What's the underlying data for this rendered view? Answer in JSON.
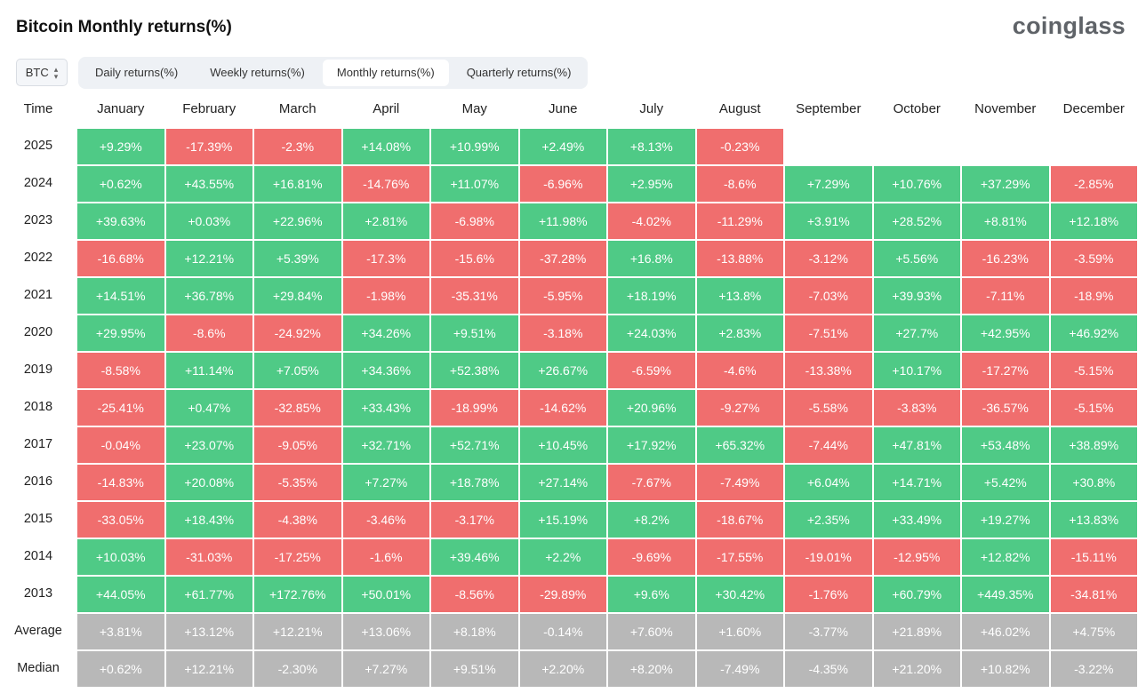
{
  "title": "Bitcoin Monthly returns(%)",
  "brand": "coinglass",
  "asset_select": {
    "value": "BTC"
  },
  "tabs": [
    {
      "label": "Daily returns(%)",
      "active": false
    },
    {
      "label": "Weekly returns(%)",
      "active": false
    },
    {
      "label": "Monthly returns(%)",
      "active": true
    },
    {
      "label": "Quarterly returns(%)",
      "active": false
    }
  ],
  "colors": {
    "positive": "#4fca86",
    "negative": "#f06e6e",
    "stat": "#b8b8b8"
  },
  "chart_data": {
    "type": "heatmap",
    "row_header": "Time",
    "columns": [
      "January",
      "February",
      "March",
      "April",
      "May",
      "June",
      "July",
      "August",
      "September",
      "October",
      "November",
      "December"
    ],
    "rows": [
      {
        "label": "2025",
        "values": [
          "+9.29%",
          "-17.39%",
          "-2.3%",
          "+14.08%",
          "+10.99%",
          "+2.49%",
          "+8.13%",
          "-0.23%",
          "",
          "",
          "",
          ""
        ]
      },
      {
        "label": "2024",
        "values": [
          "+0.62%",
          "+43.55%",
          "+16.81%",
          "-14.76%",
          "+11.07%",
          "-6.96%",
          "+2.95%",
          "-8.6%",
          "+7.29%",
          "+10.76%",
          "+37.29%",
          "-2.85%"
        ]
      },
      {
        "label": "2023",
        "values": [
          "+39.63%",
          "+0.03%",
          "+22.96%",
          "+2.81%",
          "-6.98%",
          "+11.98%",
          "-4.02%",
          "-11.29%",
          "+3.91%",
          "+28.52%",
          "+8.81%",
          "+12.18%"
        ]
      },
      {
        "label": "2022",
        "values": [
          "-16.68%",
          "+12.21%",
          "+5.39%",
          "-17.3%",
          "-15.6%",
          "-37.28%",
          "+16.8%",
          "-13.88%",
          "-3.12%",
          "+5.56%",
          "-16.23%",
          "-3.59%"
        ]
      },
      {
        "label": "2021",
        "values": [
          "+14.51%",
          "+36.78%",
          "+29.84%",
          "-1.98%",
          "-35.31%",
          "-5.95%",
          "+18.19%",
          "+13.8%",
          "-7.03%",
          "+39.93%",
          "-7.11%",
          "-18.9%"
        ]
      },
      {
        "label": "2020",
        "values": [
          "+29.95%",
          "-8.6%",
          "-24.92%",
          "+34.26%",
          "+9.51%",
          "-3.18%",
          "+24.03%",
          "+2.83%",
          "-7.51%",
          "+27.7%",
          "+42.95%",
          "+46.92%"
        ]
      },
      {
        "label": "2019",
        "values": [
          "-8.58%",
          "+11.14%",
          "+7.05%",
          "+34.36%",
          "+52.38%",
          "+26.67%",
          "-6.59%",
          "-4.6%",
          "-13.38%",
          "+10.17%",
          "-17.27%",
          "-5.15%"
        ]
      },
      {
        "label": "2018",
        "values": [
          "-25.41%",
          "+0.47%",
          "-32.85%",
          "+33.43%",
          "-18.99%",
          "-14.62%",
          "+20.96%",
          "-9.27%",
          "-5.58%",
          "-3.83%",
          "-36.57%",
          "-5.15%"
        ]
      },
      {
        "label": "2017",
        "values": [
          "-0.04%",
          "+23.07%",
          "-9.05%",
          "+32.71%",
          "+52.71%",
          "+10.45%",
          "+17.92%",
          "+65.32%",
          "-7.44%",
          "+47.81%",
          "+53.48%",
          "+38.89%"
        ]
      },
      {
        "label": "2016",
        "values": [
          "-14.83%",
          "+20.08%",
          "-5.35%",
          "+7.27%",
          "+18.78%",
          "+27.14%",
          "-7.67%",
          "-7.49%",
          "+6.04%",
          "+14.71%",
          "+5.42%",
          "+30.8%"
        ]
      },
      {
        "label": "2015",
        "values": [
          "-33.05%",
          "+18.43%",
          "-4.38%",
          "-3.46%",
          "-3.17%",
          "+15.19%",
          "+8.2%",
          "-18.67%",
          "+2.35%",
          "+33.49%",
          "+19.27%",
          "+13.83%"
        ]
      },
      {
        "label": "2014",
        "values": [
          "+10.03%",
          "-31.03%",
          "-17.25%",
          "-1.6%",
          "+39.46%",
          "+2.2%",
          "-9.69%",
          "-17.55%",
          "-19.01%",
          "-12.95%",
          "+12.82%",
          "-15.11%"
        ]
      },
      {
        "label": "2013",
        "values": [
          "+44.05%",
          "+61.77%",
          "+172.76%",
          "+50.01%",
          "-8.56%",
          "-29.89%",
          "+9.6%",
          "+30.42%",
          "-1.76%",
          "+60.79%",
          "+449.35%",
          "-34.81%"
        ]
      }
    ],
    "summary_rows": [
      {
        "label": "Average",
        "values": [
          "+3.81%",
          "+13.12%",
          "+12.21%",
          "+13.06%",
          "+8.18%",
          "-0.14%",
          "+7.60%",
          "+1.60%",
          "-3.77%",
          "+21.89%",
          "+46.02%",
          "+4.75%"
        ]
      },
      {
        "label": "Median",
        "values": [
          "+0.62%",
          "+12.21%",
          "-2.30%",
          "+7.27%",
          "+9.51%",
          "+2.20%",
          "+8.20%",
          "-7.49%",
          "-4.35%",
          "+21.20%",
          "+10.82%",
          "-3.22%"
        ]
      }
    ]
  }
}
